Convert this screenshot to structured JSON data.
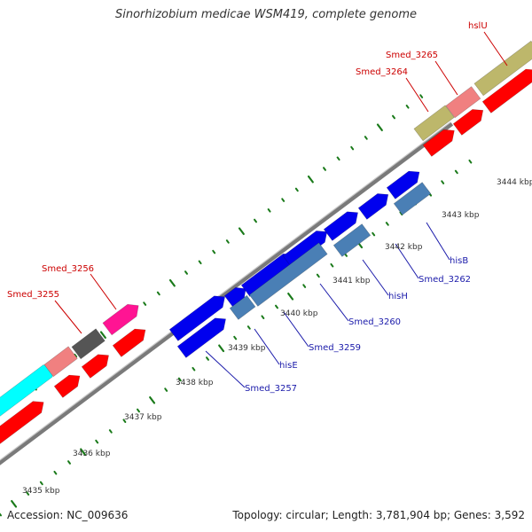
{
  "title": "Sinorhizobium medicae WSM419, complete genome",
  "accession": "Accession: NC_009636",
  "summary": "Topology: circular; Length: 3,781,904 bp; Genes: 3,592",
  "colors": {
    "backbone": "#8a8a8a",
    "tick": "#1a7a1a",
    "label_red": "#cc0000",
    "label_blue": "#1a1aaa",
    "gene_red": "#ff0000",
    "gene_blue": "#0000ee",
    "gene_steel": "#4a7fb5",
    "gene_cyan": "#00ffff",
    "gene_pink": "#f08080",
    "gene_gray": "#555555",
    "gene_magenta": "#ff1493",
    "gene_olive": "#bdb76b"
  },
  "kbp_marks": [
    {
      "label": "3435 kbp"
    },
    {
      "label": "3436 kbp"
    },
    {
      "label": "3437 kbp"
    },
    {
      "label": "3438 kbp"
    },
    {
      "label": "3439 kbp"
    },
    {
      "label": "3440 kbp"
    },
    {
      "label": "3441 kbp"
    },
    {
      "label": "3442 kbp"
    },
    {
      "label": "3443 kbp"
    },
    {
      "label": "3444 kbp"
    }
  ],
  "gene_labels": [
    {
      "name": "Smed_3255",
      "color": "red"
    },
    {
      "name": "Smed_3256",
      "color": "red"
    },
    {
      "name": "Smed_3264",
      "color": "red"
    },
    {
      "name": "Smed_3265",
      "color": "red"
    },
    {
      "name": "hslU",
      "color": "red"
    },
    {
      "name": "Smed_3257",
      "color": "blue"
    },
    {
      "name": "hisE",
      "color": "blue"
    },
    {
      "name": "Smed_3259",
      "color": "blue"
    },
    {
      "name": "Smed_3260",
      "color": "blue"
    },
    {
      "name": "hisH",
      "color": "blue"
    },
    {
      "name": "Smed_3262",
      "color": "blue"
    },
    {
      "name": "hisB",
      "color": "blue"
    }
  ]
}
